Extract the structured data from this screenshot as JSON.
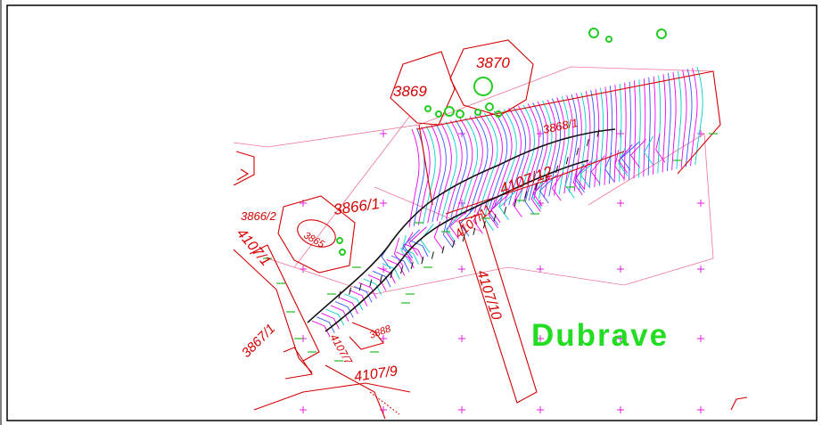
{
  "map": {
    "place_name": "Dubrave",
    "parcels": [
      "3870",
      "3869",
      "3866/2",
      "3866/1",
      "3865",
      "4107/1",
      "4107/12",
      "4107/11",
      "4107/10",
      "4107/9",
      "3867/1",
      "3888",
      "4107/7",
      "3868/1"
    ],
    "colors": {
      "parcel_lines": "#d40000",
      "place_label": "#22dd22",
      "contour_magenta": "#ee00ee",
      "contour_blue": "#3355ff",
      "contour_cyan": "#00cccc",
      "grid_cross": "#dd22dd",
      "trees": "#22cc22",
      "frame": "#000000"
    }
  }
}
